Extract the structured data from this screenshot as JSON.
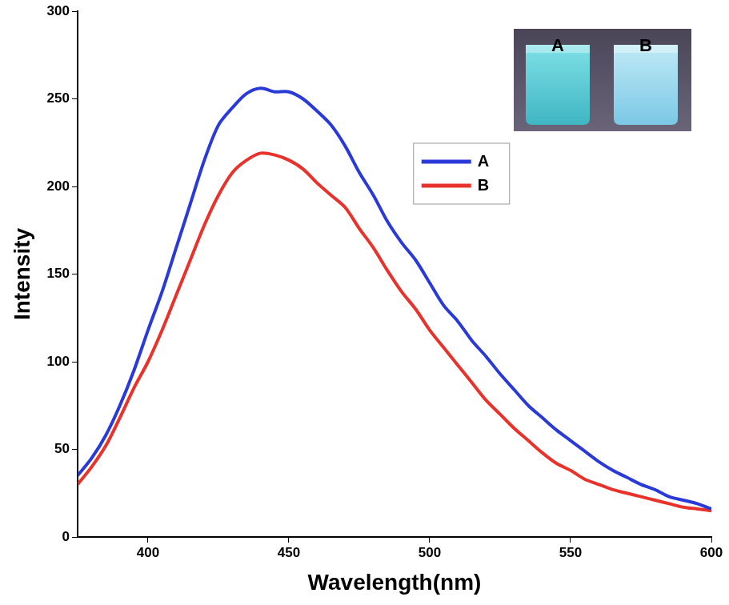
{
  "chart_data": {
    "type": "line",
    "x_label": "Wavelength(nm)",
    "y_label": "Intensity",
    "x": [
      375,
      380,
      385,
      390,
      395,
      400,
      405,
      410,
      415,
      420,
      425,
      430,
      435,
      440,
      445,
      450,
      455,
      460,
      465,
      470,
      475,
      480,
      485,
      490,
      495,
      500,
      505,
      510,
      515,
      520,
      525,
      530,
      535,
      540,
      545,
      550,
      555,
      560,
      565,
      570,
      575,
      580,
      585,
      590,
      595,
      600
    ],
    "series": [
      {
        "name": "A",
        "color": "#2a3ad8",
        "values": [
          35,
          45,
          58,
          75,
          95,
          118,
          140,
          165,
          190,
          215,
          235,
          245,
          253,
          256,
          254,
          254,
          250,
          243,
          235,
          223,
          208,
          195,
          180,
          168,
          158,
          145,
          132,
          123,
          112,
          103,
          93,
          84,
          75,
          68,
          61,
          55,
          49,
          43,
          38,
          34,
          30,
          27,
          23,
          21,
          19,
          16
        ]
      },
      {
        "name": "B",
        "color": "#e8322b",
        "values": [
          30,
          40,
          52,
          68,
          85,
          100,
          118,
          138,
          158,
          178,
          195,
          208,
          215,
          219,
          218,
          215,
          210,
          202,
          195,
          188,
          176,
          165,
          152,
          140,
          130,
          118,
          108,
          98,
          88,
          78,
          70,
          62,
          55,
          48,
          42,
          38,
          33,
          30,
          27,
          25,
          23,
          21,
          19,
          17,
          16,
          15
        ]
      }
    ],
    "xlim": [
      375,
      600
    ],
    "xticks": [
      400,
      450,
      500,
      550,
      600
    ],
    "ylim": [
      0,
      300
    ],
    "yticks": [
      0,
      50,
      100,
      150,
      200,
      250,
      300
    ],
    "grid": false,
    "legend": "upper right"
  }
}
